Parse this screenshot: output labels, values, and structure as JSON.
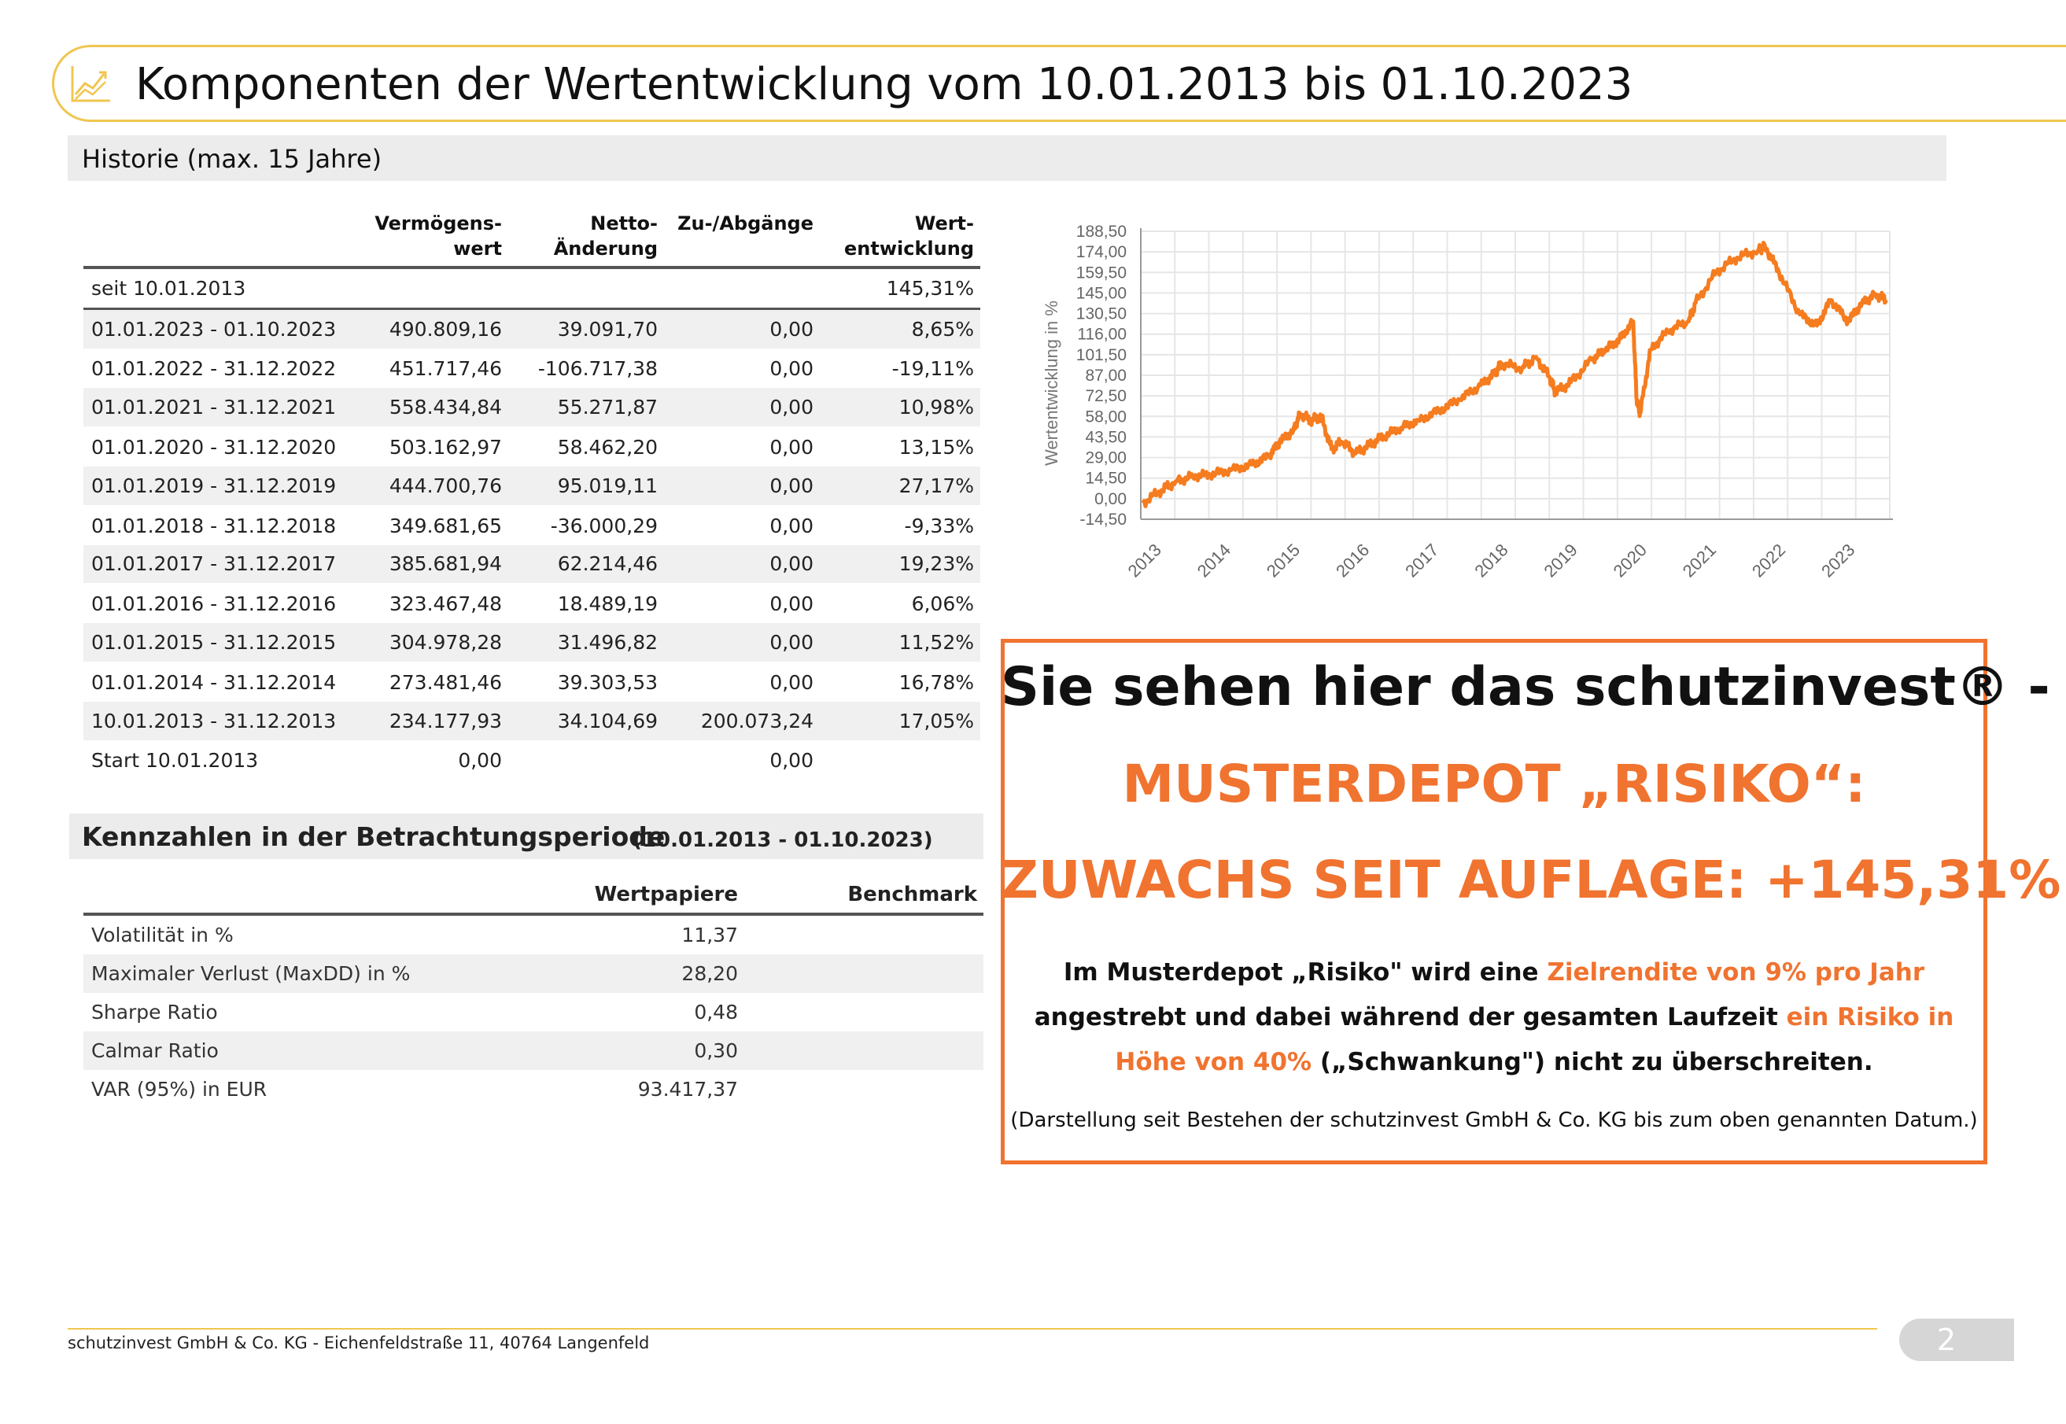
{
  "header": {
    "title": "Komponenten der Wertentwicklung vom 10.01.2013 bis 01.10.2023",
    "icon": "line-chart-icon"
  },
  "history": {
    "section_title": "Historie (max. 15 Jahre)",
    "columns": [
      "",
      "Vermögens-\nwert",
      "Netto-\nÄnderung",
      "Zu-/Abgänge",
      "Wert-\nentwicklung"
    ],
    "rows": [
      {
        "period": "seit 10.01.2013",
        "wert": "",
        "netto": "",
        "zu": "",
        "entw": "145,31%"
      },
      {
        "period": "01.01.2023 - 01.10.2023",
        "wert": "490.809,16",
        "netto": "39.091,70",
        "zu": "0,00",
        "entw": "8,65%"
      },
      {
        "period": "01.01.2022 - 31.12.2022",
        "wert": "451.717,46",
        "netto": "-106.717,38",
        "zu": "0,00",
        "entw": "-19,11%"
      },
      {
        "period": "01.01.2021 - 31.12.2021",
        "wert": "558.434,84",
        "netto": "55.271,87",
        "zu": "0,00",
        "entw": "10,98%"
      },
      {
        "period": "01.01.2020 - 31.12.2020",
        "wert": "503.162,97",
        "netto": "58.462,20",
        "zu": "0,00",
        "entw": "13,15%"
      },
      {
        "period": "01.01.2019 - 31.12.2019",
        "wert": "444.700,76",
        "netto": "95.019,11",
        "zu": "0,00",
        "entw": "27,17%"
      },
      {
        "period": "01.01.2018 - 31.12.2018",
        "wert": "349.681,65",
        "netto": "-36.000,29",
        "zu": "0,00",
        "entw": "-9,33%"
      },
      {
        "period": "01.01.2017 - 31.12.2017",
        "wert": "385.681,94",
        "netto": "62.214,46",
        "zu": "0,00",
        "entw": "19,23%"
      },
      {
        "period": "01.01.2016 - 31.12.2016",
        "wert": "323.467,48",
        "netto": "18.489,19",
        "zu": "0,00",
        "entw": "6,06%"
      },
      {
        "period": "01.01.2015 - 31.12.2015",
        "wert": "304.978,28",
        "netto": "31.496,82",
        "zu": "0,00",
        "entw": "11,52%"
      },
      {
        "period": "01.01.2014 - 31.12.2014",
        "wert": "273.481,46",
        "netto": "39.303,53",
        "zu": "0,00",
        "entw": "16,78%"
      },
      {
        "period": "10.01.2013 - 31.12.2013",
        "wert": "234.177,93",
        "netto": "34.104,69",
        "zu": "200.073,24",
        "entw": "17,05%"
      },
      {
        "period": "Start 10.01.2013",
        "wert": "0,00",
        "netto": "",
        "zu": "0,00",
        "entw": ""
      }
    ]
  },
  "kennzahlen": {
    "title": "Kennzahlen in der Betrachtungsperiode",
    "subtitle": "(10.01.2013 - 01.10.2023)",
    "columns": [
      "",
      "Wertpapiere",
      "Benchmark"
    ],
    "rows": [
      {
        "label": "Volatilität in %",
        "wp": "11,37",
        "bm": ""
      },
      {
        "label": "Maximaler Verlust (MaxDD) in %",
        "wp": "28,20",
        "bm": ""
      },
      {
        "label": "Sharpe Ratio",
        "wp": "0,48",
        "bm": ""
      },
      {
        "label": "Calmar Ratio",
        "wp": "0,30",
        "bm": ""
      },
      {
        "label": "VAR (95%) in EUR",
        "wp": "93.417,37",
        "bm": ""
      }
    ]
  },
  "chart_data": {
    "type": "line",
    "title": "",
    "xlabel": "",
    "ylabel": "Wertentwicklung in %",
    "ylim": [
      -14.5,
      188.5
    ],
    "y_ticks": [
      "188,50",
      "174,00",
      "159,50",
      "145,00",
      "130,50",
      "116,00",
      "101,50",
      "87,00",
      "72,50",
      "58,00",
      "43,50",
      "29,00",
      "14,50",
      "0,00",
      "-14,50"
    ],
    "x_ticks": [
      "2013",
      "2014",
      "2015",
      "2016",
      "2017",
      "2018",
      "2019",
      "2020",
      "2021",
      "2022",
      "2023"
    ],
    "grid": true,
    "color": "#f57c1f",
    "series": [
      {
        "x": [
          2013.03,
          2013.3,
          2013.5,
          2013.75,
          2014.0,
          2014.3,
          2014.6,
          2014.85,
          2015.0,
          2015.2,
          2015.3,
          2015.45,
          2015.6,
          2015.75,
          2015.9,
          2016.1,
          2016.3,
          2016.5,
          2016.75,
          2017.0,
          2017.3,
          2017.6,
          2017.9,
          2018.1,
          2018.2,
          2018.5,
          2018.7,
          2018.9,
          2018.98,
          2019.2,
          2019.5,
          2019.7,
          2019.9,
          2020.1,
          2020.15,
          2020.2,
          2020.35,
          2020.6,
          2020.9,
          2021.0,
          2021.3,
          2021.6,
          2021.9,
          2022.0,
          2022.2,
          2022.5,
          2022.75,
          2022.95,
          2023.2,
          2023.4,
          2023.6,
          2023.75
        ],
        "y": [
          -3,
          6,
          12,
          16,
          17,
          20,
          24,
          30,
          40,
          48,
          60,
          55,
          58,
          35,
          40,
          32,
          38,
          44,
          50,
          55,
          62,
          70,
          80,
          88,
          95,
          92,
          100,
          85,
          75,
          82,
          98,
          105,
          112,
          125,
          70,
          60,
          105,
          118,
          125,
          138,
          160,
          170,
          175,
          178,
          160,
          130,
          122,
          140,
          125,
          138,
          144,
          140
        ]
      }
    ]
  },
  "promo": {
    "headline": "Sie sehen hier das schutzinvest® -",
    "name": "MUSTERDEPOT „RISIKO“:",
    "growth": "ZUWACHS SEIT AUFLAGE: +145,31%",
    "text_1": "Im Musterdepot „Risiko\" wird eine ",
    "text_hl1": "Zielrendite von 9% pro Jahr",
    "text_2": " angestrebt und dabei während der gesamten Laufzeit ",
    "text_hl2": "ein Risiko in Höhe von 40%",
    "text_3": " („Schwankung\") nicht zu überschreiten.",
    "note": "(Darstellung seit Bestehen der schutzinvest GmbH & Co. KG bis zum oben genannten Datum.)",
    "accent_color": "#f0732f"
  },
  "footer": {
    "text": "schutzinvest GmbH & Co. KG - Eichenfeldstraße 11, 40764 Langenfeld",
    "page_number": "2"
  }
}
